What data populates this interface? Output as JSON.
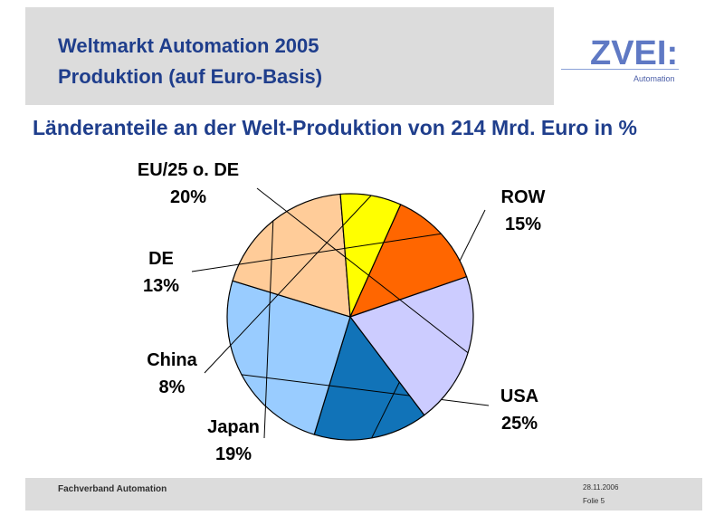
{
  "header": {
    "title_line1": "Weltmarkt Automation 2005",
    "title_line2": "Produktion (auf Euro-Basis)"
  },
  "logo": {
    "name": "ZVEI:",
    "sub": "Automation"
  },
  "footer": {
    "organization": "Fachverband Automation",
    "date": "28.11.2006",
    "slide": "Folie 5"
  },
  "chart_data": {
    "type": "pie",
    "title": "Länderanteile an der Welt-Produktion von 214 Mrd. Euro in %",
    "unit": "%",
    "slices": [
      {
        "label": "ROW",
        "value": 15,
        "value_label": "15%",
        "color": "#1173b8"
      },
      {
        "label": "USA",
        "value": 25,
        "value_label": "25%",
        "color": "#99ccff"
      },
      {
        "label": "Japan",
        "value": 19,
        "value_label": "19%",
        "color": "#ffcc99"
      },
      {
        "label": "China",
        "value": 8,
        "value_label": "8%",
        "color": "#ffff00"
      },
      {
        "label": "DE",
        "value": 13,
        "value_label": "13%",
        "color": "#ff6600"
      },
      {
        "label": "EU/25 o. DE",
        "value": 20,
        "value_label": "20%",
        "color": "#ccccff"
      }
    ],
    "legend": "none",
    "label_style": "outside labels with leader lines"
  }
}
